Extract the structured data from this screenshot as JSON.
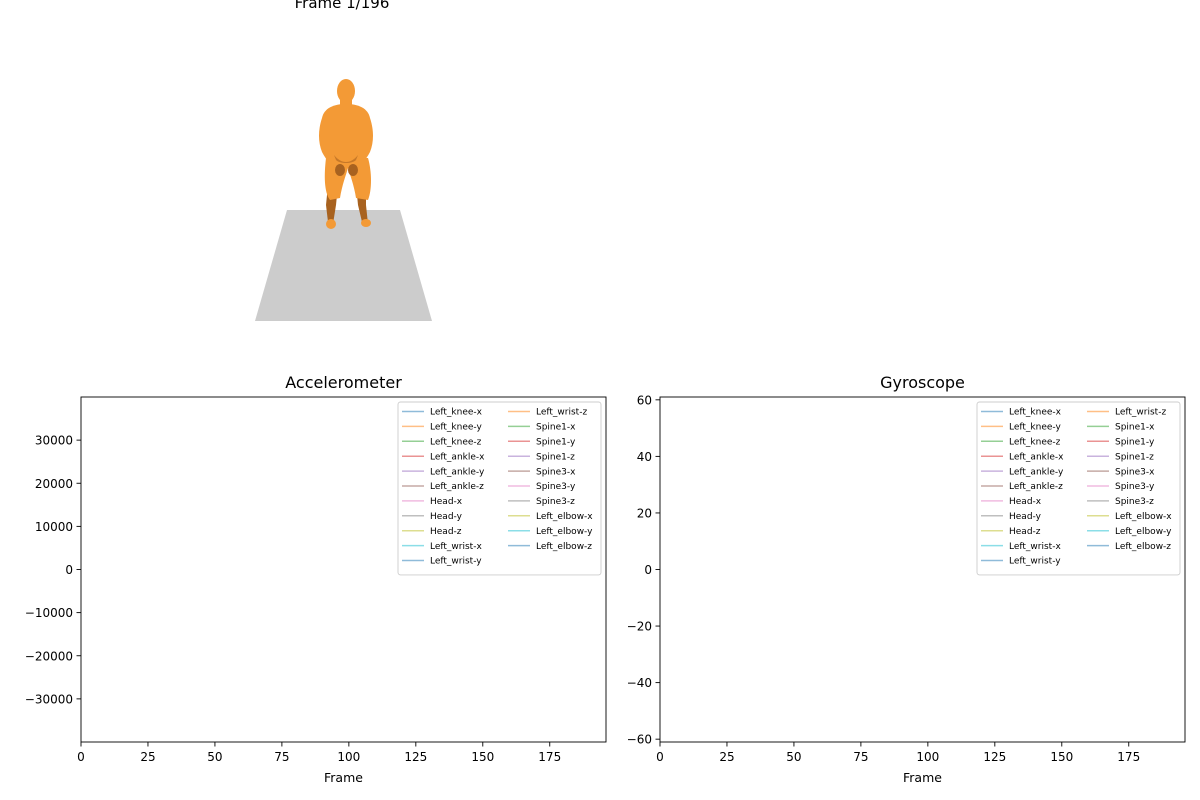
{
  "frame_title": "Frame 1/196",
  "render": {
    "body_color": "#f39a36",
    "body_shadow_color": "#a8621f",
    "floor_color": "#cccccc"
  },
  "chart_data": [
    {
      "type": "line",
      "title": "Accelerometer",
      "xlabel": "Frame",
      "ylabel": "",
      "xlim": [
        0,
        196
      ],
      "ylim": [
        -40000,
        40000
      ],
      "xticks": [
        0,
        25,
        50,
        75,
        100,
        125,
        150,
        175
      ],
      "yticks": [
        -30000,
        -20000,
        -10000,
        0,
        10000,
        20000,
        30000
      ],
      "grid": false,
      "legend_position": "upper-right",
      "legend_columns": 2,
      "series": [
        {
          "name": "Left_knee-x",
          "color": "#1f77b4",
          "values": []
        },
        {
          "name": "Left_knee-y",
          "color": "#ff7f0e",
          "values": []
        },
        {
          "name": "Left_knee-z",
          "color": "#2ca02c",
          "values": []
        },
        {
          "name": "Left_ankle-x",
          "color": "#d62728",
          "values": []
        },
        {
          "name": "Left_ankle-y",
          "color": "#9467bd",
          "values": []
        },
        {
          "name": "Left_ankle-z",
          "color": "#8c564b",
          "values": []
        },
        {
          "name": "Head-x",
          "color": "#e377c2",
          "values": []
        },
        {
          "name": "Head-y",
          "color": "#7f7f7f",
          "values": []
        },
        {
          "name": "Head-z",
          "color": "#bcbd22",
          "values": []
        },
        {
          "name": "Left_wrist-x",
          "color": "#17becf",
          "values": []
        },
        {
          "name": "Left_wrist-y",
          "color": "#1f77b4",
          "values": []
        },
        {
          "name": "Left_wrist-z",
          "color": "#ff7f0e",
          "values": []
        },
        {
          "name": "Spine1-x",
          "color": "#2ca02c",
          "values": []
        },
        {
          "name": "Spine1-y",
          "color": "#d62728",
          "values": []
        },
        {
          "name": "Spine1-z",
          "color": "#9467bd",
          "values": []
        },
        {
          "name": "Spine3-x",
          "color": "#8c564b",
          "values": []
        },
        {
          "name": "Spine3-y",
          "color": "#e377c2",
          "values": []
        },
        {
          "name": "Spine3-z",
          "color": "#7f7f7f",
          "values": []
        },
        {
          "name": "Left_elbow-x",
          "color": "#bcbd22",
          "values": []
        },
        {
          "name": "Left_elbow-y",
          "color": "#17becf",
          "values": []
        },
        {
          "name": "Left_elbow-z",
          "color": "#1f77b4",
          "values": []
        }
      ]
    },
    {
      "type": "line",
      "title": "Gyroscope",
      "xlabel": "Frame",
      "ylabel": "",
      "xlim": [
        0,
        196
      ],
      "ylim": [
        -61,
        61
      ],
      "xticks": [
        0,
        25,
        50,
        75,
        100,
        125,
        150,
        175
      ],
      "yticks": [
        -60,
        -40,
        -20,
        0,
        20,
        40,
        60
      ],
      "grid": false,
      "legend_position": "upper-right",
      "legend_columns": 2,
      "series": [
        {
          "name": "Left_knee-x",
          "color": "#1f77b4",
          "values": []
        },
        {
          "name": "Left_knee-y",
          "color": "#ff7f0e",
          "values": []
        },
        {
          "name": "Left_knee-z",
          "color": "#2ca02c",
          "values": []
        },
        {
          "name": "Left_ankle-x",
          "color": "#d62728",
          "values": []
        },
        {
          "name": "Left_ankle-y",
          "color": "#9467bd",
          "values": []
        },
        {
          "name": "Left_ankle-z",
          "color": "#8c564b",
          "values": []
        },
        {
          "name": "Head-x",
          "color": "#e377c2",
          "values": []
        },
        {
          "name": "Head-y",
          "color": "#7f7f7f",
          "values": []
        },
        {
          "name": "Head-z",
          "color": "#bcbd22",
          "values": []
        },
        {
          "name": "Left_wrist-x",
          "color": "#17becf",
          "values": []
        },
        {
          "name": "Left_wrist-y",
          "color": "#1f77b4",
          "values": []
        },
        {
          "name": "Left_wrist-z",
          "color": "#ff7f0e",
          "values": []
        },
        {
          "name": "Spine1-x",
          "color": "#2ca02c",
          "values": []
        },
        {
          "name": "Spine1-y",
          "color": "#d62728",
          "values": []
        },
        {
          "name": "Spine1-z",
          "color": "#9467bd",
          "values": []
        },
        {
          "name": "Spine3-x",
          "color": "#8c564b",
          "values": []
        },
        {
          "name": "Spine3-y",
          "color": "#e377c2",
          "values": []
        },
        {
          "name": "Spine3-z",
          "color": "#7f7f7f",
          "values": []
        },
        {
          "name": "Left_elbow-x",
          "color": "#bcbd22",
          "values": []
        },
        {
          "name": "Left_elbow-y",
          "color": "#17becf",
          "values": []
        },
        {
          "name": "Left_elbow-z",
          "color": "#1f77b4",
          "values": []
        }
      ]
    }
  ]
}
